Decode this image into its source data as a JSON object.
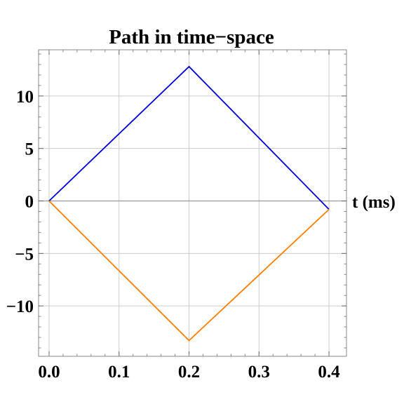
{
  "chart_data": {
    "type": "line",
    "title": "Path in time−space",
    "xlabel": "t (ms)",
    "ylabel": "",
    "xlim": [
      -0.015,
      0.425
    ],
    "ylim": [
      -14.8,
      14.4
    ],
    "x_ticks": [
      {
        "value": 0.0,
        "label": "0.0"
      },
      {
        "value": 0.1,
        "label": "0.1"
      },
      {
        "value": 0.2,
        "label": "0.2"
      },
      {
        "value": 0.3,
        "label": "0.3"
      },
      {
        "value": 0.4,
        "label": "0.4"
      }
    ],
    "y_ticks": [
      {
        "value": 10,
        "label": "10"
      },
      {
        "value": 5,
        "label": "5"
      },
      {
        "value": 0,
        "label": "0"
      },
      {
        "value": -5,
        "label": "−5"
      },
      {
        "value": -10,
        "label": "−10"
      }
    ],
    "grid": true,
    "series": [
      {
        "color": "#0000dd",
        "x": [
          0.0,
          0.2,
          0.4
        ],
        "y": [
          0.0,
          12.8,
          -0.8
        ]
      },
      {
        "color": "#ff8000",
        "x": [
          0.0,
          0.2,
          0.4
        ],
        "y": [
          0.0,
          -13.3,
          -0.8
        ]
      }
    ]
  }
}
